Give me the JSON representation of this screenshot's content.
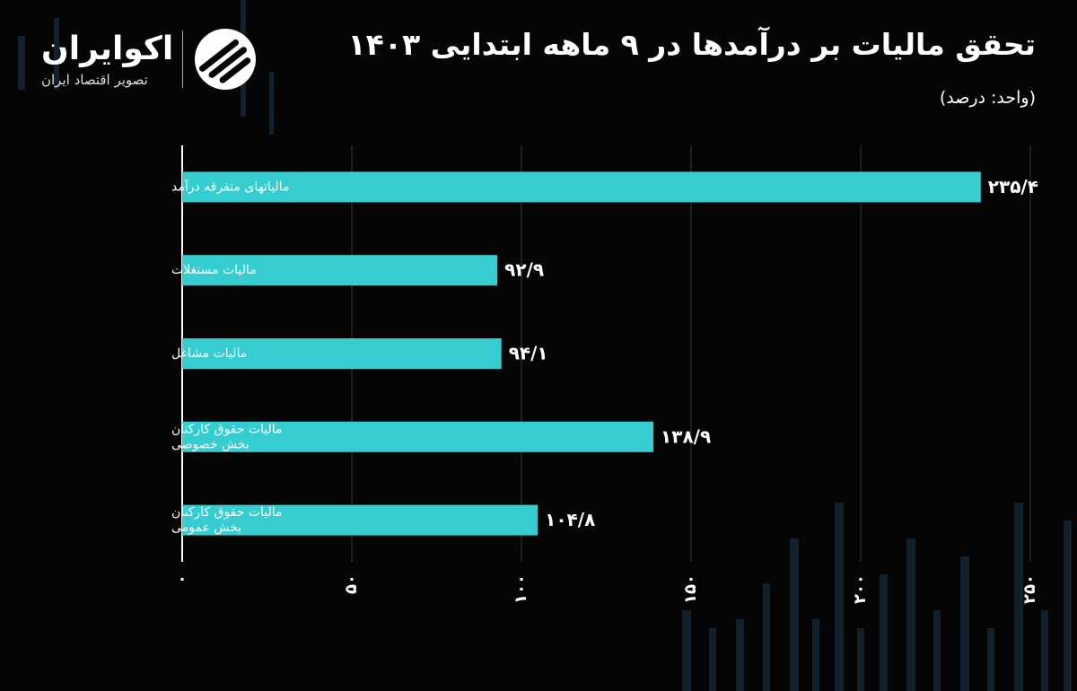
{
  "header": {
    "title": "تحقق مالیات بر درآمدها در ۹ ماهه ابتدایی ۱۴۰۳",
    "unit_note": "(واحد: درصد)"
  },
  "brand": {
    "name": "اکوایران",
    "tagline": "تصویر اقتصاد ایران",
    "logo_icon": "ecoiran-logo-icon"
  },
  "colors": {
    "bar": "#35cdcf",
    "background": "#050505",
    "grid": "#3a3a3a",
    "text": "#ffffff"
  },
  "chart_data": {
    "type": "bar",
    "orientation": "horizontal",
    "categories": [
      [
        "مالیاتهای متفرقه درآمد"
      ],
      [
        "مالیات مستغلات"
      ],
      [
        "مالیات مشاغل"
      ],
      [
        "مالیات حقوق کارکنان",
        "بخش خصوصی"
      ],
      [
        "مالیات حقوق کارکنان",
        "بخش عمومی"
      ]
    ],
    "values": [
      235.4,
      92.9,
      94.1,
      138.9,
      104.8
    ],
    "value_labels": [
      "۲۳۵/۴",
      "۹۲/۹",
      "۹۴/۱",
      "۱۳۸/۹",
      "۱۰۴/۸"
    ],
    "x_ticks": [
      0,
      50,
      100,
      150,
      200,
      250
    ],
    "x_tick_labels": [
      "۰",
      "۵۰",
      "۱۰۰",
      "۱۵۰",
      "۲۰۰",
      "۲۵۰"
    ],
    "xlim": [
      0,
      250
    ],
    "grid": true,
    "title": "تحقق مالیات بر درآمدها در ۹ ماهه ابتدایی ۱۴۰۳",
    "xlabel": "",
    "ylabel": ""
  }
}
